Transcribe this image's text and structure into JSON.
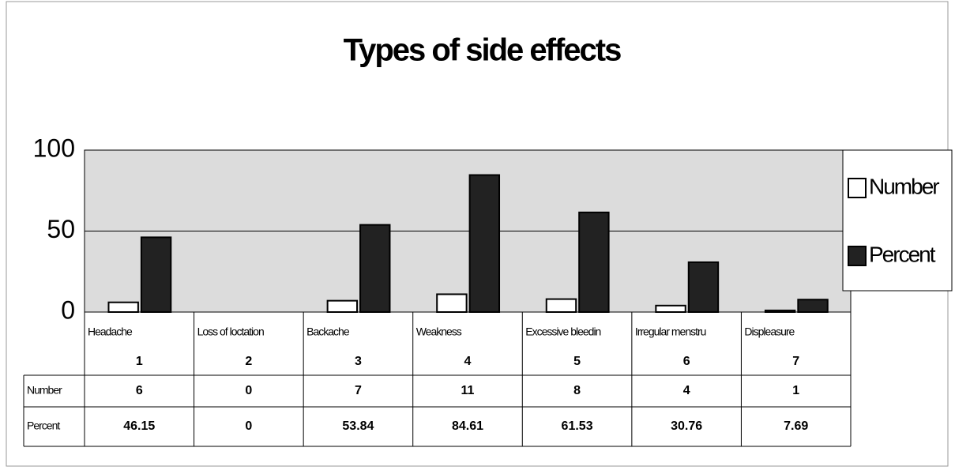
{
  "chart_data": {
    "type": "bar",
    "title": "Types of side effects",
    "categories": [
      "Headache",
      "Loss of loctation",
      "Backache",
      "Weakness",
      "Excessive bleedin",
      "Irregular menstru",
      "Displeasure"
    ],
    "category_numbers": [
      1,
      2,
      3,
      4,
      5,
      6,
      7
    ],
    "series": [
      {
        "name": "Number",
        "color": "#ffffff",
        "values": [
          6,
          0,
          7,
          11,
          8,
          4,
          1
        ]
      },
      {
        "name": "Percent",
        "color": "#222222",
        "values": [
          46.15,
          0,
          53.84,
          84.61,
          61.53,
          30.76,
          7.69
        ]
      }
    ],
    "ylim": [
      0,
      100
    ],
    "yticks": [
      0,
      50,
      100
    ],
    "grid": true,
    "legend": "right"
  }
}
